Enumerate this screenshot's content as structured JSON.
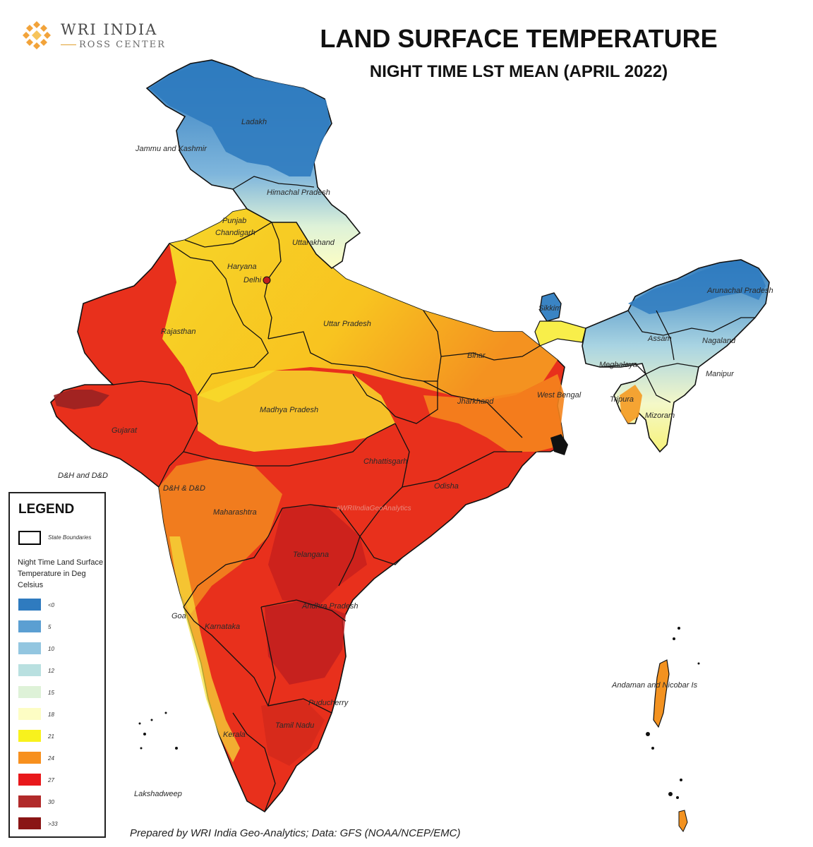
{
  "branding": {
    "name": "WRI INDIA",
    "subname": "ROSS CENTER"
  },
  "title": "LAND SURFACE TEMPERATURE",
  "subtitle": "NIGHT TIME LST MEAN (APRIL 2022)",
  "credit": "Prepared by WRI India Geo-Analytics; Data: GFS (NOAA/NCEP/EMC)",
  "colors": {
    "cold": "#2f7bbf",
    "mild": "#fdfdb0",
    "warm": "#f7901e",
    "hot": "#e31e1e",
    "veryhot": "#8a1515"
  },
  "map_labels": {
    "ladakh": "Ladakh",
    "jk": "Jammu and Kashmir",
    "hp": "Himachal Pradesh",
    "punjab": "Punjab",
    "chandigarh": "Chandigarh",
    "uttarakhand": "Uttarakhand",
    "haryana": "Haryana",
    "delhi": "Delhi",
    "rajasthan": "Rajasthan",
    "up": "Uttar Pradesh",
    "bihar": "Bihar",
    "sikkim": "Sikkim",
    "arunachal": "Arunachal Pradesh",
    "assam": "Assam",
    "nagaland": "Nagaland",
    "meghalaya": "Meghalaya",
    "manipur": "Manipur",
    "tripura": "Tripura",
    "mizoram": "Mizoram",
    "wb": "West Bengal",
    "jharkhand": "Jharkhand",
    "mp": "Madhya Pradesh",
    "gujarat": "Gujarat",
    "dhdd1": "D&H and D&D",
    "dhdd2": "D&H & D&D",
    "chhattisgarh": "Chhattisgarh",
    "odisha": "Odisha",
    "hashtag": "#WRIIndiaGeoAnalytics",
    "maharashtra": "Maharashtra",
    "telangana": "Telangana",
    "ap": "Andhra Pradesh",
    "goa": "Goa",
    "karnataka": "Karnataka",
    "andaman": "Andaman and Nicobar Is",
    "puducherry": "Puducherry",
    "tamilnadu": "Tamil Nadu",
    "kerala": "Kerala",
    "lakshadweep": "Lakshadweep"
  },
  "legend": {
    "title": "LEGEND",
    "boundary_label": "State Boundaries",
    "heading": "Night Time Land Surface Temperature in Deg Celsius",
    "items": [
      {
        "label": "<0",
        "color": "#2f7bbf"
      },
      {
        "label": "5",
        "color": "#5b9fd2"
      },
      {
        "label": "10",
        "color": "#93c6e0"
      },
      {
        "label": "12",
        "color": "#b9e0e0"
      },
      {
        "label": "15",
        "color": "#def2d8"
      },
      {
        "label": "18",
        "color": "#fdfdc4"
      },
      {
        "label": "21",
        "color": "#f8f21d"
      },
      {
        "label": "24",
        "color": "#f7901e"
      },
      {
        "label": "27",
        "color": "#e8181b"
      },
      {
        "label": "30",
        "color": "#b12a2a"
      },
      {
        "label": ">33",
        "color": "#8a1515"
      }
    ]
  }
}
